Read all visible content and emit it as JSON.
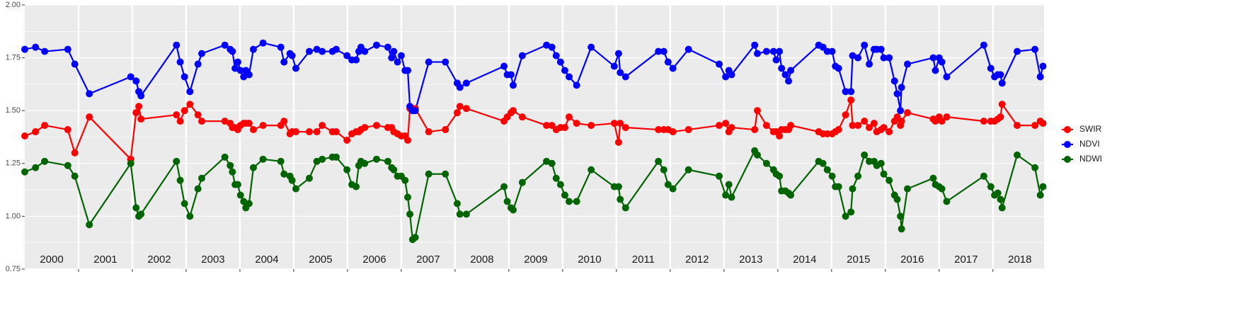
{
  "chart_data": {
    "type": "line",
    "x": [
      2000.0,
      2000.2,
      2000.37,
      2000.8,
      2000.93,
      2001.2,
      2001.97,
      2002.07,
      2002.12,
      2002.16,
      2002.82,
      2002.89,
      2002.97,
      2003.07,
      2003.22,
      2003.29,
      2003.72,
      2003.82,
      2003.86,
      2003.91,
      2003.96,
      2004.01,
      2004.07,
      2004.11,
      2004.17,
      2004.25,
      2004.43,
      2004.76,
      2004.82,
      2004.93,
      2004.97,
      2005.04,
      2005.29,
      2005.43,
      2005.53,
      2005.72,
      2005.79,
      2005.99,
      2006.08,
      2006.16,
      2006.21,
      2006.25,
      2006.32,
      2006.54,
      2006.75,
      2006.82,
      2006.86,
      2006.93,
      2007.0,
      2007.07,
      2007.12,
      2007.16,
      2007.21,
      2007.26,
      2007.51,
      2007.82,
      2008.04,
      2008.09,
      2008.21,
      2008.91,
      2008.97,
      2009.04,
      2009.08,
      2009.25,
      2009.7,
      2009.8,
      2009.88,
      2009.96,
      2010.04,
      2010.12,
      2010.26,
      2010.53,
      2010.96,
      2011.04,
      2011.07,
      2011.17,
      2011.78,
      2011.88,
      2011.96,
      2012.05,
      2012.34,
      2012.91,
      2013.03,
      2013.09,
      2013.14,
      2013.57,
      2013.62,
      2013.79,
      2013.92,
      2013.97,
      2014.03,
      2014.07,
      2014.14,
      2014.2,
      2014.24,
      2014.76,
      2014.84,
      2014.92,
      2015.01,
      2015.07,
      2015.13,
      2015.26,
      2015.36,
      2015.39,
      2015.49,
      2015.61,
      2015.7,
      2015.79,
      2015.84,
      2015.92,
      2015.97,
      2016.07,
      2016.17,
      2016.22,
      2016.28,
      2016.3,
      2016.41,
      2016.89,
      2016.93,
      2017.0,
      2017.05,
      2017.14,
      2017.83,
      2017.96,
      2018.03,
      2018.09,
      2018.14,
      2018.17,
      2018.45,
      2018.78,
      2018.88,
      2018.93
    ],
    "series": [
      {
        "name": "SWIR",
        "color": "#ff0000",
        "values": [
          1.38,
          1.4,
          1.43,
          1.41,
          1.3,
          1.47,
          1.27,
          1.49,
          1.52,
          1.46,
          1.48,
          1.45,
          1.5,
          1.53,
          1.48,
          1.45,
          1.45,
          1.44,
          1.42,
          1.42,
          1.41,
          1.43,
          1.44,
          1.44,
          1.44,
          1.41,
          1.43,
          1.43,
          1.45,
          1.39,
          1.4,
          1.4,
          1.4,
          1.4,
          1.43,
          1.4,
          1.4,
          1.36,
          1.39,
          1.4,
          1.4,
          1.41,
          1.42,
          1.43,
          1.42,
          1.42,
          1.4,
          1.39,
          1.38,
          1.38,
          1.36,
          1.51,
          1.51,
          1.51,
          1.4,
          1.41,
          1.49,
          1.52,
          1.51,
          1.45,
          1.47,
          1.49,
          1.5,
          1.47,
          1.43,
          1.43,
          1.41,
          1.42,
          1.42,
          1.47,
          1.44,
          1.43,
          1.44,
          1.35,
          1.44,
          1.42,
          1.41,
          1.41,
          1.41,
          1.4,
          1.41,
          1.43,
          1.44,
          1.4,
          1.42,
          1.41,
          1.5,
          1.43,
          1.4,
          1.4,
          1.38,
          1.41,
          1.41,
          1.41,
          1.43,
          1.4,
          1.39,
          1.39,
          1.39,
          1.4,
          1.41,
          1.48,
          1.55,
          1.43,
          1.43,
          1.45,
          1.42,
          1.44,
          1.4,
          1.41,
          1.42,
          1.4,
          1.45,
          1.47,
          1.43,
          1.45,
          1.49,
          1.46,
          1.45,
          1.47,
          1.45,
          1.47,
          1.45,
          1.45,
          1.45,
          1.46,
          1.47,
          1.53,
          1.43,
          1.43,
          1.45,
          1.44
        ]
      },
      {
        "name": "NDVI",
        "color": "#0000ff",
        "values": [
          1.79,
          1.8,
          1.78,
          1.79,
          1.72,
          1.58,
          1.66,
          1.64,
          1.59,
          1.57,
          1.81,
          1.73,
          1.66,
          1.59,
          1.72,
          1.77,
          1.81,
          1.79,
          1.78,
          1.7,
          1.73,
          1.69,
          1.66,
          1.69,
          1.67,
          1.79,
          1.82,
          1.8,
          1.73,
          1.77,
          1.76,
          1.7,
          1.78,
          1.79,
          1.78,
          1.78,
          1.79,
          1.76,
          1.74,
          1.74,
          1.78,
          1.8,
          1.78,
          1.81,
          1.8,
          1.75,
          1.78,
          1.73,
          1.76,
          1.69,
          1.69,
          1.52,
          1.5,
          1.5,
          1.73,
          1.73,
          1.63,
          1.61,
          1.63,
          1.71,
          1.67,
          1.67,
          1.62,
          1.76,
          1.81,
          1.8,
          1.76,
          1.73,
          1.69,
          1.66,
          1.62,
          1.8,
          1.71,
          1.77,
          1.68,
          1.66,
          1.78,
          1.78,
          1.73,
          1.7,
          1.79,
          1.72,
          1.66,
          1.69,
          1.67,
          1.81,
          1.77,
          1.78,
          1.78,
          1.74,
          1.78,
          1.7,
          1.67,
          1.64,
          1.69,
          1.81,
          1.8,
          1.78,
          1.78,
          1.71,
          1.7,
          1.59,
          1.59,
          1.76,
          1.75,
          1.81,
          1.72,
          1.79,
          1.79,
          1.79,
          1.75,
          1.75,
          1.64,
          1.58,
          1.5,
          1.61,
          1.72,
          1.75,
          1.69,
          1.75,
          1.73,
          1.66,
          1.81,
          1.7,
          1.66,
          1.67,
          1.67,
          1.63,
          1.78,
          1.79,
          1.66,
          1.71
        ]
      },
      {
        "name": "NDWI",
        "color": "#006400",
        "values": [
          1.21,
          1.23,
          1.26,
          1.24,
          1.19,
          0.96,
          1.25,
          1.04,
          1.0,
          1.01,
          1.26,
          1.17,
          1.06,
          1.0,
          1.13,
          1.18,
          1.28,
          1.24,
          1.21,
          1.15,
          1.15,
          1.1,
          1.07,
          1.04,
          1.06,
          1.23,
          1.27,
          1.26,
          1.2,
          1.19,
          1.17,
          1.13,
          1.18,
          1.26,
          1.27,
          1.28,
          1.28,
          1.22,
          1.15,
          1.14,
          1.24,
          1.26,
          1.25,
          1.27,
          1.26,
          1.23,
          1.22,
          1.19,
          1.19,
          1.17,
          1.09,
          1.01,
          0.89,
          0.9,
          1.2,
          1.2,
          1.06,
          1.01,
          1.01,
          1.14,
          1.07,
          1.04,
          1.03,
          1.16,
          1.26,
          1.25,
          1.18,
          1.15,
          1.1,
          1.07,
          1.07,
          1.22,
          1.14,
          1.14,
          1.08,
          1.04,
          1.26,
          1.22,
          1.15,
          1.13,
          1.22,
          1.19,
          1.1,
          1.15,
          1.09,
          1.31,
          1.29,
          1.25,
          1.22,
          1.2,
          1.19,
          1.12,
          1.12,
          1.11,
          1.1,
          1.26,
          1.25,
          1.22,
          1.19,
          1.14,
          1.14,
          1.0,
          1.02,
          1.13,
          1.19,
          1.29,
          1.26,
          1.26,
          1.24,
          1.25,
          1.2,
          1.17,
          1.1,
          1.08,
          1.0,
          0.94,
          1.13,
          1.18,
          1.15,
          1.14,
          1.13,
          1.07,
          1.19,
          1.14,
          1.1,
          1.11,
          1.08,
          1.04,
          1.29,
          1.23,
          1.1,
          1.14
        ]
      }
    ],
    "xlim": [
      2000,
      2018.95
    ],
    "xticks": [
      {
        "value": 2000.5,
        "label": "2000"
      },
      {
        "value": 2001.5,
        "label": "2001"
      },
      {
        "value": 2002.5,
        "label": "2002"
      },
      {
        "value": 2003.5,
        "label": "2003"
      },
      {
        "value": 2004.5,
        "label": "2004"
      },
      {
        "value": 2005.5,
        "label": "2005"
      },
      {
        "value": 2006.5,
        "label": "2006"
      },
      {
        "value": 2007.5,
        "label": "2007"
      },
      {
        "value": 2008.5,
        "label": "2008"
      },
      {
        "value": 2009.5,
        "label": "2009"
      },
      {
        "value": 2010.5,
        "label": "2010"
      },
      {
        "value": 2011.5,
        "label": "2011"
      },
      {
        "value": 2012.5,
        "label": "2012"
      },
      {
        "value": 2013.5,
        "label": "2013"
      },
      {
        "value": 2014.5,
        "label": "2014"
      },
      {
        "value": 2015.5,
        "label": "2015"
      },
      {
        "value": 2016.5,
        "label": "2016"
      },
      {
        "value": 2017.5,
        "label": "2017"
      },
      {
        "value": 2018.5,
        "label": "2018"
      }
    ],
    "xgrid": [
      2001,
      2002,
      2003,
      2004,
      2005,
      2006,
      2007,
      2008,
      2009,
      2010,
      2011,
      2012,
      2013,
      2014,
      2015,
      2016,
      2017,
      2018
    ],
    "ylim": [
      0.75,
      2.0
    ],
    "yticks": [
      0.75,
      {
        "value": 1.0,
        "label": "1.00"
      },
      1.25,
      {
        "value": 1.5,
        "label": "1.50"
      },
      1.75,
      {
        "value": 2.0,
        "label": "2.00"
      }
    ],
    "grid": true,
    "legend": "right"
  }
}
